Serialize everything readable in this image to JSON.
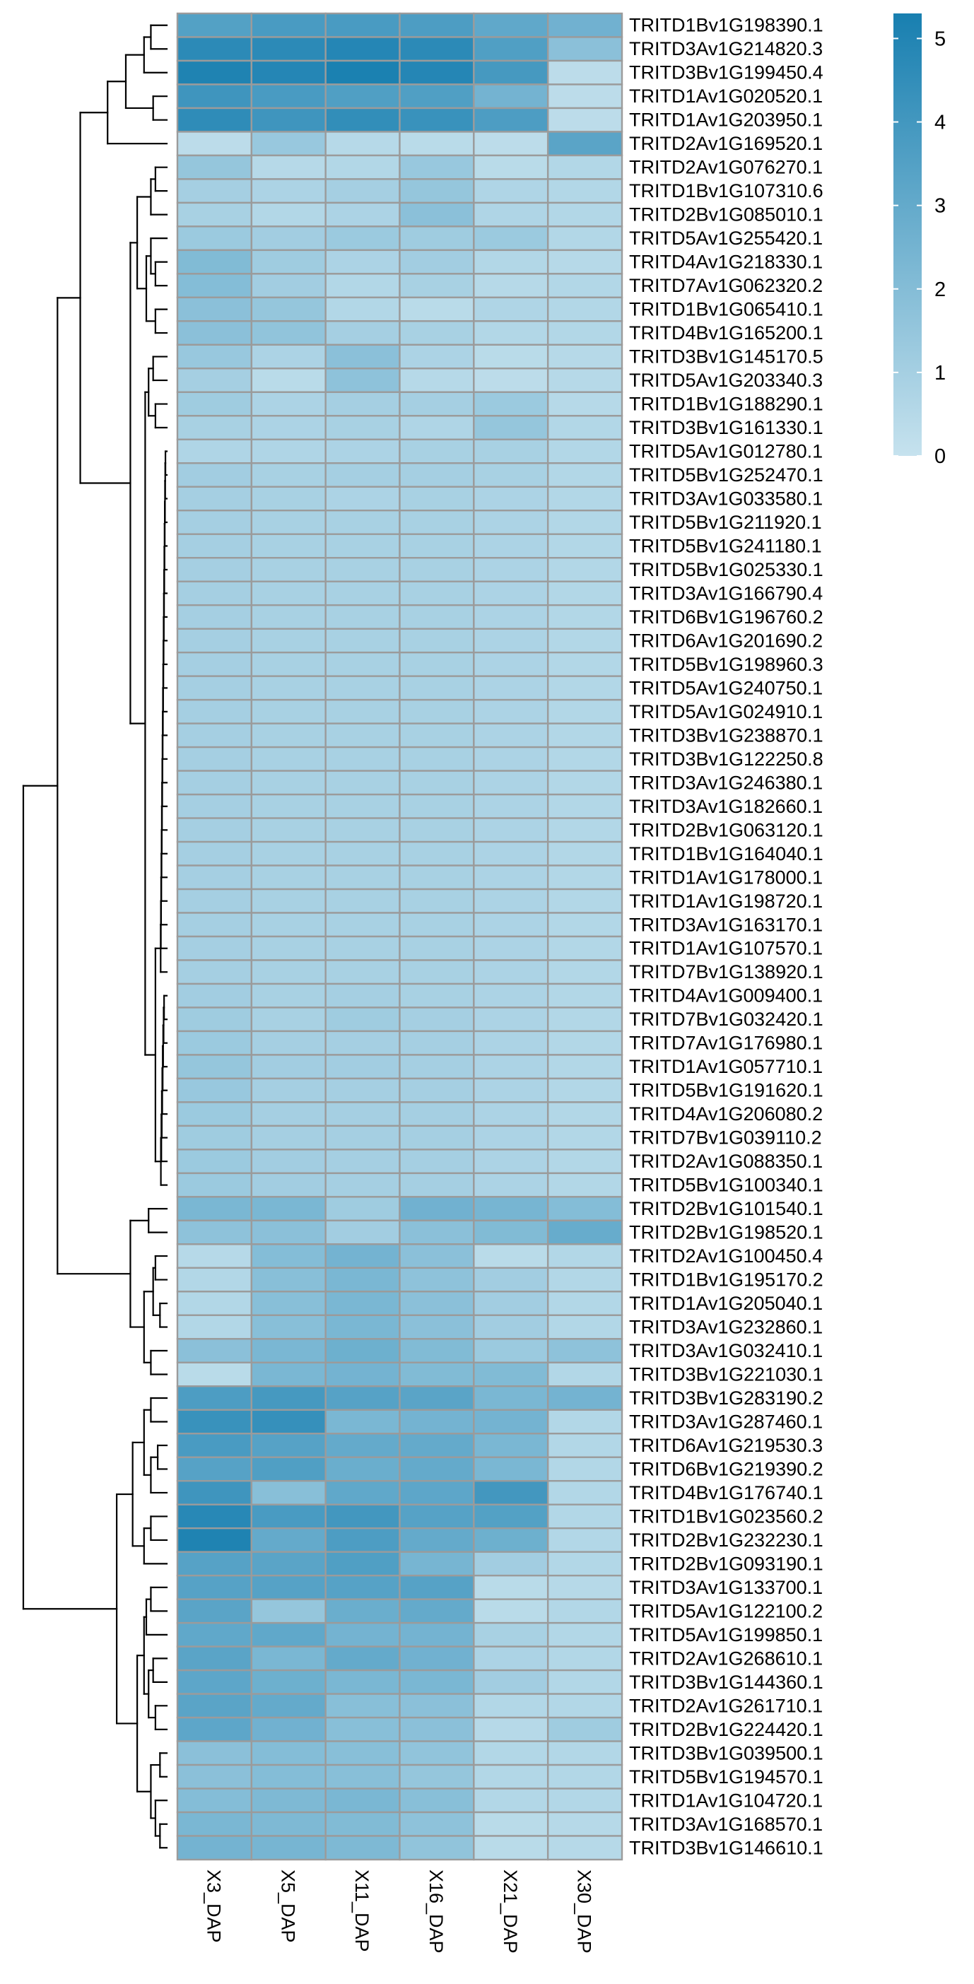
{
  "chart_data": {
    "type": "heatmap",
    "title": "",
    "xlabel": "",
    "ylabel": "",
    "x_categories": [
      "X3_DAP",
      "X5_DAP",
      "X11_DAP",
      "X16_DAP",
      "X21_DAP",
      "X30_DAP"
    ],
    "y_categories": [
      "TRITD1Bv1G198390.1",
      "TRITD3Av1G214820.3",
      "TRITD3Bv1G199450.4",
      "TRITD1Av1G020520.1",
      "TRITD1Av1G203950.1",
      "TRITD2Av1G169520.1",
      "TRITD2Av1G076270.1",
      "TRITD1Bv1G107310.6",
      "TRITD2Bv1G085010.1",
      "TRITD5Av1G255420.1",
      "TRITD4Av1G218330.1",
      "TRITD7Av1G062320.2",
      "TRITD1Bv1G065410.1",
      "TRITD4Bv1G165200.1",
      "TRITD3Bv1G145170.5",
      "TRITD5Av1G203340.3",
      "TRITD1Bv1G188290.1",
      "TRITD3Bv1G161330.1",
      "TRITD5Av1G012780.1",
      "TRITD5Bv1G252470.1",
      "TRITD3Av1G033580.1",
      "TRITD5Bv1G211920.1",
      "TRITD5Bv1G241180.1",
      "TRITD5Bv1G025330.1",
      "TRITD3Av1G166790.4",
      "TRITD6Bv1G196760.2",
      "TRITD6Av1G201690.2",
      "TRITD5Bv1G198960.3",
      "TRITD5Av1G240750.1",
      "TRITD5Av1G024910.1",
      "TRITD3Bv1G238870.1",
      "TRITD3Bv1G122250.8",
      "TRITD3Av1G246380.1",
      "TRITD3Av1G182660.1",
      "TRITD2Bv1G063120.1",
      "TRITD1Bv1G164040.1",
      "TRITD1Av1G178000.1",
      "TRITD1Av1G198720.1",
      "TRITD3Av1G163170.1",
      "TRITD1Av1G107570.1",
      "TRITD7Bv1G138920.1",
      "TRITD4Av1G009400.1",
      "TRITD7Bv1G032420.1",
      "TRITD7Av1G176980.1",
      "TRITD1Av1G057710.1",
      "TRITD5Bv1G191620.1",
      "TRITD4Av1G206080.2",
      "TRITD7Bv1G039110.2",
      "TRITD2Av1G088350.1",
      "TRITD5Bv1G100340.1",
      "TRITD2Bv1G101540.1",
      "TRITD2Bv1G198520.1",
      "TRITD2Av1G100450.4",
      "TRITD1Bv1G195170.2",
      "TRITD1Av1G205040.1",
      "TRITD3Av1G232860.1",
      "TRITD3Av1G032410.1",
      "TRITD3Bv1G221030.1",
      "TRITD3Bv1G283190.2",
      "TRITD3Av1G287460.1",
      "TRITD6Av1G219530.3",
      "TRITD6Bv1G219390.2",
      "TRITD4Bv1G176740.1",
      "TRITD1Bv1G023560.2",
      "TRITD2Bv1G232230.1",
      "TRITD2Bv1G093190.1",
      "TRITD3Av1G133700.1",
      "TRITD5Av1G122100.2",
      "TRITD5Av1G199850.1",
      "TRITD2Av1G268610.1",
      "TRITD3Bv1G144360.1",
      "TRITD2Av1G261710.1",
      "TRITD2Bv1G224420.1",
      "TRITD3Bv1G039500.1",
      "TRITD5Bv1G194570.1",
      "TRITD1Av1G104720.1",
      "TRITD3Av1G168570.1",
      "TRITD3Bv1G146610.1"
    ],
    "values": [
      [
        3.5,
        3.8,
        3.8,
        3.7,
        3.1,
        2.6
      ],
      [
        4.7,
        4.7,
        4.9,
        4.7,
        3.6,
        1.8
      ],
      [
        5.1,
        4.9,
        5.2,
        4.9,
        3.9,
        0.3
      ],
      [
        4.1,
        3.8,
        3.6,
        3.6,
        2.5,
        0.3
      ],
      [
        4.6,
        4.1,
        4.5,
        4.3,
        3.7,
        0.3
      ],
      [
        0.3,
        1.4,
        0.5,
        0.4,
        0.3,
        3.3
      ],
      [
        1.5,
        0.5,
        0.6,
        1.4,
        0.4,
        0.6
      ],
      [
        1.0,
        0.8,
        1.0,
        1.5,
        0.7,
        0.6
      ],
      [
        0.9,
        0.6,
        0.8,
        1.8,
        0.7,
        0.6
      ],
      [
        1.3,
        1.1,
        1.3,
        1.2,
        1.3,
        0.6
      ],
      [
        2.1,
        1.2,
        0.8,
        1.1,
        0.6,
        0.5
      ],
      [
        2.0,
        1.1,
        0.6,
        0.9,
        0.5,
        0.6
      ],
      [
        1.8,
        1.5,
        0.6,
        0.4,
        0.7,
        0.6
      ],
      [
        1.8,
        1.6,
        1.0,
        0.9,
        0.6,
        0.6
      ],
      [
        1.4,
        0.8,
        1.8,
        0.8,
        0.4,
        0.5
      ],
      [
        1.0,
        0.4,
        1.7,
        0.5,
        0.3,
        0.5
      ],
      [
        1.2,
        0.8,
        1.0,
        1.0,
        1.3,
        0.5
      ],
      [
        0.9,
        0.8,
        0.9,
        0.7,
        1.5,
        0.6
      ],
      [
        0.7,
        0.7,
        0.8,
        0.9,
        0.9,
        0.6
      ],
      [
        1.1,
        0.9,
        1.0,
        1.0,
        0.9,
        0.6
      ],
      [
        1.0,
        0.9,
        0.8,
        0.9,
        0.8,
        0.6
      ],
      [
        1.0,
        0.9,
        0.9,
        0.9,
        0.8,
        0.6
      ],
      [
        1.0,
        0.9,
        0.9,
        0.9,
        0.8,
        0.6
      ],
      [
        1.0,
        0.9,
        0.9,
        0.9,
        0.8,
        0.6
      ],
      [
        1.0,
        0.9,
        0.9,
        0.9,
        0.8,
        0.6
      ],
      [
        1.0,
        0.9,
        0.9,
        0.9,
        0.8,
        0.6
      ],
      [
        1.0,
        0.9,
        0.9,
        0.9,
        0.8,
        0.6
      ],
      [
        1.0,
        0.9,
        0.9,
        0.9,
        0.8,
        0.6
      ],
      [
        1.0,
        0.9,
        0.9,
        0.9,
        0.8,
        0.6
      ],
      [
        1.0,
        0.9,
        0.9,
        0.9,
        0.8,
        0.6
      ],
      [
        1.0,
        0.9,
        0.9,
        0.9,
        0.8,
        0.6
      ],
      [
        1.0,
        0.9,
        0.9,
        0.9,
        0.8,
        0.6
      ],
      [
        1.0,
        0.9,
        0.9,
        0.9,
        0.8,
        0.6
      ],
      [
        1.0,
        0.9,
        0.9,
        0.9,
        0.8,
        0.6
      ],
      [
        1.0,
        0.9,
        0.9,
        0.9,
        0.8,
        0.6
      ],
      [
        1.0,
        0.9,
        0.9,
        0.9,
        0.8,
        0.6
      ],
      [
        1.0,
        0.9,
        0.9,
        0.9,
        0.8,
        0.6
      ],
      [
        1.0,
        0.9,
        0.9,
        0.9,
        0.8,
        0.6
      ],
      [
        1.0,
        0.9,
        0.9,
        0.9,
        0.8,
        0.6
      ],
      [
        1.0,
        0.9,
        0.9,
        0.9,
        0.8,
        0.6
      ],
      [
        1.0,
        0.9,
        0.9,
        0.9,
        0.8,
        0.6
      ],
      [
        1.1,
        0.9,
        1.0,
        0.9,
        0.8,
        0.6
      ],
      [
        1.2,
        0.9,
        1.2,
        1.0,
        0.8,
        0.6
      ],
      [
        1.3,
        1.0,
        1.0,
        1.0,
        0.8,
        0.6
      ],
      [
        1.5,
        1.1,
        1.1,
        1.0,
        0.8,
        0.6
      ],
      [
        1.4,
        1.0,
        1.0,
        1.0,
        0.8,
        0.6
      ],
      [
        1.3,
        1.0,
        1.0,
        1.0,
        0.8,
        0.6
      ],
      [
        1.2,
        1.0,
        1.0,
        1.0,
        0.8,
        0.6
      ],
      [
        1.3,
        1.1,
        1.0,
        1.0,
        0.8,
        0.6
      ],
      [
        1.3,
        1.1,
        1.0,
        1.0,
        0.8,
        0.6
      ],
      [
        2.3,
        2.3,
        1.2,
        2.6,
        2.4,
        2.0
      ],
      [
        1.7,
        1.8,
        1.1,
        1.8,
        2.1,
        2.9
      ],
      [
        0.5,
        2.0,
        2.5,
        1.8,
        0.4,
        0.6
      ],
      [
        0.6,
        1.9,
        2.3,
        1.7,
        1.1,
        0.6
      ],
      [
        0.6,
        1.9,
        2.3,
        1.8,
        1.1,
        0.6
      ],
      [
        0.6,
        1.9,
        2.3,
        1.8,
        1.1,
        0.6
      ],
      [
        1.8,
        2.3,
        2.7,
        2.1,
        1.3,
        1.7
      ],
      [
        0.4,
        2.3,
        2.5,
        2.1,
        2.1,
        0.6
      ],
      [
        3.7,
        3.9,
        3.4,
        3.3,
        2.3,
        2.5
      ],
      [
        4.3,
        4.4,
        2.3,
        2.5,
        2.5,
        0.6
      ],
      [
        3.8,
        3.4,
        3.0,
        3.0,
        2.3,
        0.6
      ],
      [
        3.4,
        3.6,
        2.8,
        3.0,
        2.3,
        0.6
      ],
      [
        4.1,
        1.9,
        3.1,
        3.2,
        4.0,
        0.6
      ],
      [
        4.8,
        3.8,
        4.0,
        3.4,
        3.5,
        0.6
      ],
      [
        5.1,
        3.0,
        3.7,
        3.0,
        2.7,
        0.6
      ],
      [
        3.4,
        3.3,
        3.6,
        2.4,
        1.1,
        0.6
      ],
      [
        3.4,
        3.4,
        3.4,
        3.4,
        0.4,
        0.5
      ],
      [
        3.3,
        1.5,
        2.8,
        3.0,
        0.4,
        0.6
      ],
      [
        3.1,
        3.1,
        2.5,
        2.5,
        0.9,
        0.6
      ],
      [
        3.3,
        2.3,
        3.0,
        2.6,
        0.8,
        0.6
      ],
      [
        3.2,
        2.7,
        2.3,
        2.3,
        1.1,
        0.6
      ],
      [
        3.3,
        3.0,
        1.9,
        1.8,
        0.6,
        0.6
      ],
      [
        3.2,
        2.6,
        1.9,
        1.8,
        0.5,
        1.2
      ],
      [
        1.8,
        2.0,
        1.9,
        1.6,
        0.6,
        0.6
      ],
      [
        1.8,
        2.0,
        1.9,
        1.5,
        0.6,
        0.6
      ],
      [
        2.0,
        2.2,
        2.3,
        1.9,
        0.6,
        0.6
      ],
      [
        2.3,
        2.2,
        2.1,
        1.7,
        0.4,
        0.5
      ],
      [
        2.5,
        2.4,
        2.2,
        1.6,
        0.4,
        0.5
      ]
    ],
    "legend": {
      "position": "top-right",
      "min": 0,
      "max": 5.3,
      "ticks": [
        0,
        1,
        2,
        3,
        4,
        5
      ],
      "low_color": "#c6e2ee",
      "high_color": "#187fb0"
    },
    "cell_border_color": "#9b9b9b",
    "dendrogram": "rows"
  }
}
